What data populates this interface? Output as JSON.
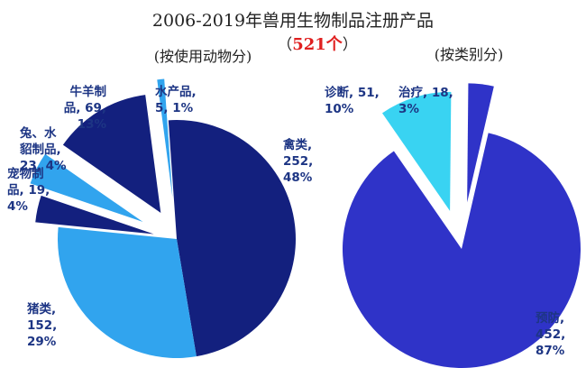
{
  "header": {
    "title": "2006-2019年兽用生物制品注册产品",
    "total_open": "（",
    "total": "521个",
    "total_close": "）",
    "left_subtitle": "(按使用动物分)",
    "right_subtitle": "(按类别分)"
  },
  "colors": {
    "dark_navy": "#13207e",
    "royal_blue": "#2f33c8",
    "sky_blue": "#31a4ee",
    "light_cyan": "#39d3f2",
    "label_text": "#1d3584"
  },
  "chart_data": [
    {
      "type": "pie",
      "title": "(按使用动物分)",
      "slices": [
        {
          "name": "禽类",
          "count": 252,
          "percent": 48,
          "color": "#13207e",
          "label_lines": [
            "禽类,",
            "252,",
            "48%"
          ]
        },
        {
          "name": "猪类",
          "count": 152,
          "percent": 29,
          "color": "#31a4ee",
          "label_lines": [
            "猪类,",
            "152,",
            "29%"
          ]
        },
        {
          "name": "宠物制品",
          "count": 19,
          "percent": 4,
          "color": "#13207e",
          "label_lines": [
            "宠物制",
            "品, 19,",
            "4%"
          ]
        },
        {
          "name": "兔、水貂制品",
          "count": 23,
          "percent": 4,
          "color": "#31a4ee",
          "label_lines": [
            "兔、水",
            "貂制品,",
            "23, 4%"
          ]
        },
        {
          "name": "牛羊制品",
          "count": 69,
          "percent": 13,
          "color": "#13207e",
          "label_lines": [
            "牛羊制",
            "品, 69,",
            "13%"
          ]
        },
        {
          "name": "水产品",
          "count": 5,
          "percent": 1,
          "color": "#31a4ee",
          "label_lines": [
            "水产品,",
            "5, 1%"
          ]
        }
      ]
    },
    {
      "type": "pie",
      "title": "(按类别分)",
      "slices": [
        {
          "name": "预防",
          "count": 452,
          "percent": 87,
          "color": "#2f33c8",
          "label_lines": [
            "预防,",
            "452,",
            "87%"
          ]
        },
        {
          "name": "诊断",
          "count": 51,
          "percent": 10,
          "color": "#39d3f2",
          "label_lines": [
            "诊断, 51,",
            "10%"
          ]
        },
        {
          "name": "治疗",
          "count": 18,
          "percent": 3,
          "color": "#2f33c8",
          "label_lines": [
            "治疗, 18,",
            "3%"
          ]
        }
      ]
    }
  ]
}
